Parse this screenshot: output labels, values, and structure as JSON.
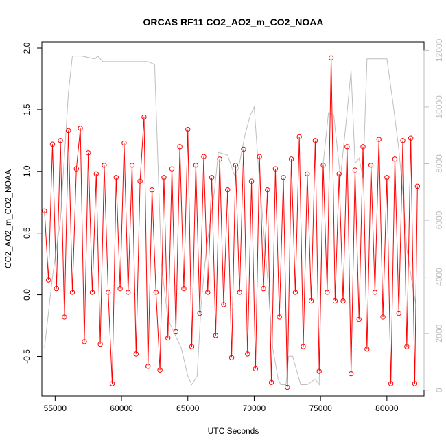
{
  "chart_data": {
    "type": "scatter",
    "title": "ORCAS RF11 CO2_AO2_m_CO2_NOAA",
    "xlabel": "UTC Seconds",
    "ylabel": "CO2_AO2_m_CO2_NOAA",
    "xlim": [
      54000,
      82800
    ],
    "ylim": [
      -0.82,
      2.05
    ],
    "x_ticks": [
      "55000",
      "60000",
      "65000",
      "70000",
      "75000",
      "80000"
    ],
    "x_tick_values": [
      55000,
      60000,
      65000,
      70000,
      75000,
      80000
    ],
    "y_ticks": [
      "-0.5",
      "0.0",
      "0.5",
      "1.0",
      "1.5",
      "2.0"
    ],
    "y_tick_values": [
      -0.5,
      0,
      0.5,
      1,
      1.5,
      2
    ],
    "y2lim": [
      -200,
      12300
    ],
    "y2_ticks": [
      "0",
      "2000",
      "4000",
      "6000",
      "8000",
      "10000",
      "12000"
    ],
    "y2_tick_values": [
      0,
      2000,
      4000,
      6000,
      8000,
      10000,
      12000
    ],
    "grid": false,
    "legend": "none",
    "series": [
      {
        "style": "red lines with open circles",
        "color": "#ff0000",
        "x": [
          54200,
          54500,
          54800,
          55100,
          55400,
          55700,
          56000,
          56300,
          56600,
          56900,
          57200,
          57500,
          57800,
          58100,
          58400,
          58700,
          59000,
          59300,
          59600,
          59900,
          60200,
          60500,
          60800,
          61100,
          61400,
          61700,
          62000,
          62300,
          62600,
          62900,
          63200,
          63500,
          63800,
          64100,
          64400,
          64700,
          65000,
          65300,
          65600,
          65900,
          66200,
          66500,
          66800,
          67100,
          67400,
          67700,
          68000,
          68300,
          68600,
          68900,
          69200,
          69500,
          69800,
          70100,
          70400,
          70700,
          71000,
          71300,
          71600,
          71900,
          72200,
          72500,
          72800,
          73100,
          73400,
          73700,
          74000,
          74300,
          74600,
          74900,
          75200,
          75500,
          75800,
          76100,
          76400,
          76700,
          77000,
          77300,
          77600,
          77900,
          78200,
          78500,
          78800,
          79100,
          79400,
          79700,
          80000,
          80300,
          80600,
          80900,
          81200,
          81500,
          81800,
          82100,
          82300
        ],
        "y": [
          0.68,
          0.12,
          1.22,
          0.05,
          1.25,
          -0.18,
          1.33,
          0.02,
          1.02,
          1.35,
          -0.38,
          1.15,
          0.02,
          0.98,
          -0.4,
          1.05,
          0.02,
          -0.72,
          0.95,
          0.05,
          1.23,
          0.02,
          1.05,
          -0.48,
          0.92,
          1.44,
          -0.58,
          0.85,
          0.02,
          -0.61,
          0.95,
          -0.35,
          1.02,
          -0.3,
          1.2,
          0.05,
          1.34,
          -0.42,
          1.05,
          -0.15,
          1.12,
          0.02,
          0.95,
          -0.33,
          1.1,
          -0.08,
          0.85,
          -0.51,
          1.05,
          0.02,
          1.18,
          -0.48,
          0.92,
          -0.6,
          1.12,
          0.05,
          0.85,
          -0.71,
          1.02,
          -0.18,
          0.95,
          -0.75,
          1.1,
          0.02,
          1.28,
          -0.42,
          0.98,
          -0.05,
          1.25,
          -0.62,
          1.05,
          0.02,
          1.92,
          -0.05,
          0.98,
          -0.05,
          1.2,
          -0.64,
          1.01,
          -0.2,
          1.2,
          -0.44,
          1.05,
          0.02,
          1.26,
          -0.18,
          0.95,
          -0.72,
          1.1,
          -0.15,
          1.25,
          -0.42,
          1.27,
          -0.72,
          0.88
        ]
      },
      {
        "style": "grey line, right axis",
        "color": "#bebebe",
        "axis": "right",
        "x": [
          54200,
          54800,
          55400,
          56000,
          56300,
          57000,
          58000,
          58200,
          58600,
          59000,
          60000,
          61000,
          62000,
          62500,
          63000,
          63500,
          64000,
          64500,
          65000,
          65300,
          65700,
          66000,
          66400,
          67000,
          67300,
          68000,
          68500,
          68800,
          69300,
          69700,
          70000,
          70300,
          71000,
          71400,
          71800,
          72000,
          72400,
          72600,
          72900,
          73500,
          74000,
          74600,
          74900,
          75200,
          75600,
          76000,
          76500,
          77000,
          77300,
          77600,
          77900,
          78200,
          78500,
          79000,
          79500,
          80000,
          80500,
          80900,
          81200,
          81500,
          82000,
          82200
        ],
        "y": [
          1500,
          4000,
          6000,
          10500,
          11800,
          11800,
          11700,
          11800,
          11600,
          11600,
          11600,
          11600,
          11600,
          11500,
          4500,
          2500,
          2000,
          1500,
          500,
          200,
          500,
          3000,
          5000,
          7000,
          8400,
          8300,
          7600,
          7800,
          9000,
          9700,
          10000,
          8000,
          4000,
          1500,
          400,
          200,
          200,
          1200,
          1200,
          200,
          200,
          400,
          200,
          8000,
          9800,
          9700,
          7500,
          9800,
          11300,
          8000,
          8200,
          7500,
          11700,
          11700,
          11700,
          11700,
          10000,
          8500,
          7000,
          5000,
          3500,
          3000
        ]
      }
    ]
  }
}
